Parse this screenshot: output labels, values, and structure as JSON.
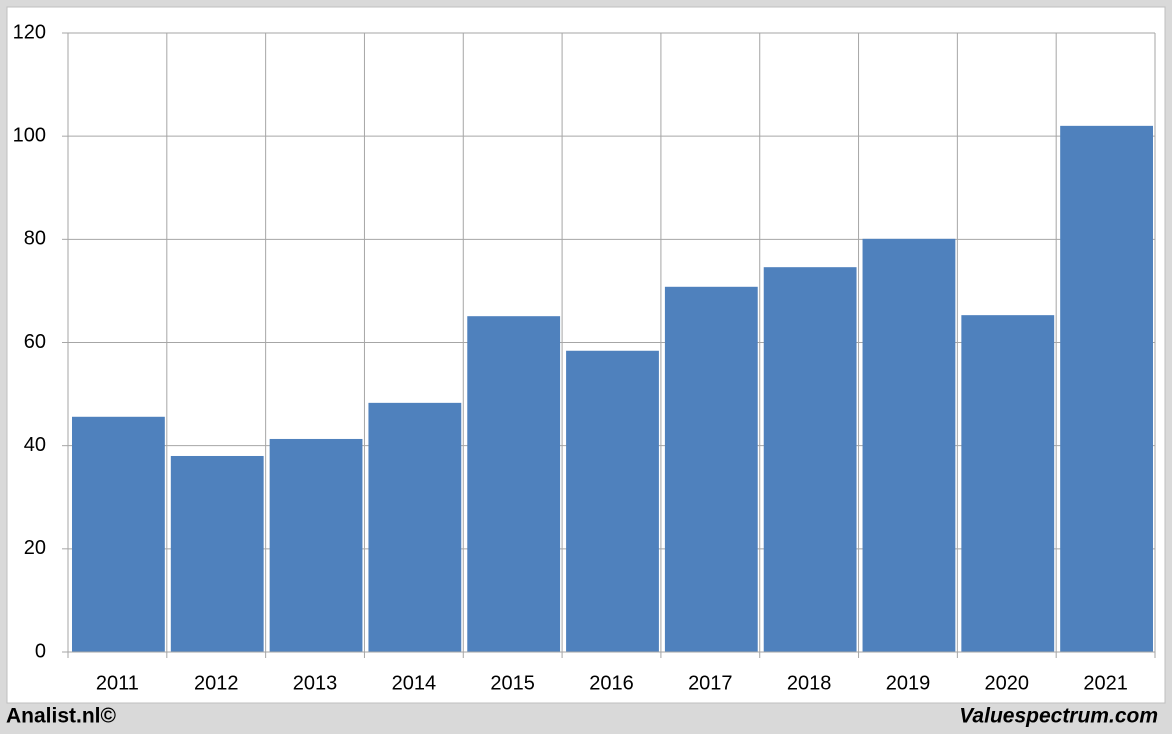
{
  "chart_data": {
    "type": "bar",
    "categories": [
      "2011",
      "2012",
      "2013",
      "2014",
      "2015",
      "2016",
      "2017",
      "2018",
      "2019",
      "2020",
      "2021"
    ],
    "values": [
      45.6,
      38.0,
      41.3,
      48.3,
      65.1,
      58.4,
      70.8,
      74.6,
      80.1,
      65.3,
      102.0
    ],
    "color": "#4f81bd",
    "ylim": [
      0,
      120
    ],
    "yticks": [
      0,
      20,
      40,
      60,
      80,
      100,
      120
    ],
    "grid": true,
    "annotations": [
      "Analist.nl©",
      "Valuespectrum.com"
    ]
  }
}
